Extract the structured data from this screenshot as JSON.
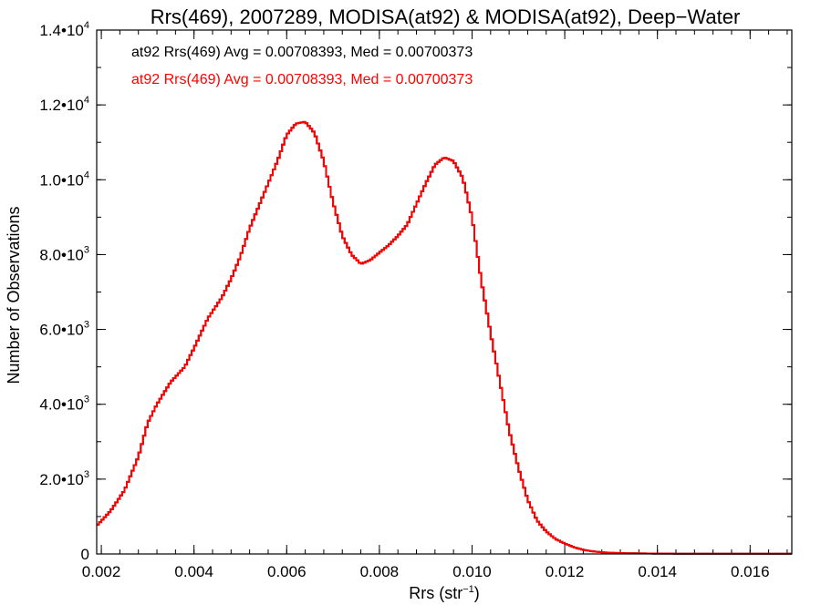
{
  "chart_data": {
    "type": "line",
    "title": "Rrs(469), 2007289, MODISA(at92) & MODISA(at92), Deep−Water",
    "xlabel": "Rrs (str",
    "xlabel_sup": "−1",
    "xlabel_end": ")",
    "ylabel": "Number of Observations",
    "xlim": [
      0.0019,
      0.0169
    ],
    "ylim": [
      0,
      14000
    ],
    "x_ticks": [
      0.002,
      0.004,
      0.006,
      0.008,
      0.01,
      0.012,
      0.014,
      0.016
    ],
    "x_tick_labels": [
      "0.002",
      "0.004",
      "0.006",
      "0.008",
      "0.010",
      "0.012",
      "0.014",
      "0.016"
    ],
    "y_ticks": [
      {
        "value": 0,
        "mantissa": "0",
        "exponent": ""
      },
      {
        "value": 2000,
        "mantissa": "2.0•10",
        "exponent": "3"
      },
      {
        "value": 4000,
        "mantissa": "4.0•10",
        "exponent": "3"
      },
      {
        "value": 6000,
        "mantissa": "6.0•10",
        "exponent": "3"
      },
      {
        "value": 8000,
        "mantissa": "8.0•10",
        "exponent": "3"
      },
      {
        "value": 10000,
        "mantissa": "1.0•10",
        "exponent": "4"
      },
      {
        "value": 12000,
        "mantissa": "1.2•10",
        "exponent": "4"
      },
      {
        "value": 14000,
        "mantissa": "1.4•10",
        "exponent": "4"
      }
    ],
    "grid": false,
    "annotations": [
      {
        "text": "at92 Rrs(469) Avg = 0.00708393, Med = 0.00700373",
        "color": "#000000"
      },
      {
        "text": "at92 Rrs(469) Avg = 0.00708393, Med = 0.00700373",
        "color": "#ff0000"
      }
    ],
    "series": [
      {
        "color": "#000000",
        "points": [
          [
            0.0019,
            750
          ],
          [
            0.0022,
            1150
          ],
          [
            0.0025,
            1700
          ],
          [
            0.0028,
            2600
          ],
          [
            0.003,
            3500
          ],
          [
            0.0032,
            4000
          ],
          [
            0.0035,
            4600
          ],
          [
            0.0038,
            5000
          ],
          [
            0.004,
            5500
          ],
          [
            0.0043,
            6300
          ],
          [
            0.0046,
            6850
          ],
          [
            0.0048,
            7350
          ],
          [
            0.005,
            7950
          ],
          [
            0.0052,
            8700
          ],
          [
            0.0055,
            9600
          ],
          [
            0.0058,
            10500
          ],
          [
            0.006,
            11200
          ],
          [
            0.0062,
            11500
          ],
          [
            0.0064,
            11550
          ],
          [
            0.0066,
            11250
          ],
          [
            0.0068,
            10500
          ],
          [
            0.007,
            9400
          ],
          [
            0.0072,
            8500
          ],
          [
            0.0074,
            8000
          ],
          [
            0.0076,
            7750
          ],
          [
            0.0078,
            7850
          ],
          [
            0.008,
            8050
          ],
          [
            0.0082,
            8250
          ],
          [
            0.0084,
            8500
          ],
          [
            0.0086,
            8800
          ],
          [
            0.0088,
            9350
          ],
          [
            0.009,
            9900
          ],
          [
            0.0092,
            10400
          ],
          [
            0.0094,
            10600
          ],
          [
            0.0096,
            10500
          ],
          [
            0.0098,
            10050
          ],
          [
            0.01,
            9000
          ],
          [
            0.0102,
            7300
          ],
          [
            0.0104,
            5900
          ],
          [
            0.0106,
            4600
          ],
          [
            0.0108,
            3300
          ],
          [
            0.011,
            2300
          ],
          [
            0.0112,
            1450
          ],
          [
            0.0114,
            900
          ],
          [
            0.0116,
            600
          ],
          [
            0.0118,
            400
          ],
          [
            0.012,
            280
          ],
          [
            0.0122,
            180
          ],
          [
            0.0124,
            110
          ],
          [
            0.0126,
            70
          ],
          [
            0.0128,
            45
          ],
          [
            0.013,
            30
          ],
          [
            0.0133,
            20
          ],
          [
            0.0136,
            15
          ],
          [
            0.014,
            10
          ],
          [
            0.0145,
            8
          ],
          [
            0.015,
            6
          ],
          [
            0.016,
            5
          ],
          [
            0.0169,
            4
          ]
        ]
      },
      {
        "color": "#ff0000",
        "points": [
          [
            0.0019,
            750
          ],
          [
            0.0022,
            1150
          ],
          [
            0.0025,
            1700
          ],
          [
            0.0028,
            2600
          ],
          [
            0.003,
            3500
          ],
          [
            0.0032,
            4000
          ],
          [
            0.0035,
            4600
          ],
          [
            0.0038,
            5000
          ],
          [
            0.004,
            5500
          ],
          [
            0.0043,
            6300
          ],
          [
            0.0046,
            6850
          ],
          [
            0.0048,
            7350
          ],
          [
            0.005,
            7950
          ],
          [
            0.0052,
            8700
          ],
          [
            0.0055,
            9600
          ],
          [
            0.0058,
            10500
          ],
          [
            0.006,
            11200
          ],
          [
            0.0062,
            11500
          ],
          [
            0.0064,
            11550
          ],
          [
            0.0066,
            11250
          ],
          [
            0.0068,
            10500
          ],
          [
            0.007,
            9400
          ],
          [
            0.0072,
            8500
          ],
          [
            0.0074,
            8000
          ],
          [
            0.0076,
            7750
          ],
          [
            0.0078,
            7850
          ],
          [
            0.008,
            8050
          ],
          [
            0.0082,
            8250
          ],
          [
            0.0084,
            8500
          ],
          [
            0.0086,
            8800
          ],
          [
            0.0088,
            9350
          ],
          [
            0.009,
            9900
          ],
          [
            0.0092,
            10400
          ],
          [
            0.0094,
            10600
          ],
          [
            0.0096,
            10500
          ],
          [
            0.0098,
            10050
          ],
          [
            0.01,
            9000
          ],
          [
            0.0102,
            7300
          ],
          [
            0.0104,
            5900
          ],
          [
            0.0106,
            4600
          ],
          [
            0.0108,
            3300
          ],
          [
            0.011,
            2300
          ],
          [
            0.0112,
            1450
          ],
          [
            0.0114,
            900
          ],
          [
            0.0116,
            600
          ],
          [
            0.0118,
            400
          ],
          [
            0.012,
            280
          ],
          [
            0.0122,
            180
          ],
          [
            0.0124,
            110
          ],
          [
            0.0126,
            70
          ],
          [
            0.0128,
            45
          ],
          [
            0.013,
            30
          ],
          [
            0.0133,
            20
          ],
          [
            0.0136,
            15
          ],
          [
            0.014,
            10
          ],
          [
            0.0145,
            8
          ],
          [
            0.015,
            6
          ],
          [
            0.016,
            5
          ],
          [
            0.0169,
            4
          ]
        ]
      }
    ]
  }
}
